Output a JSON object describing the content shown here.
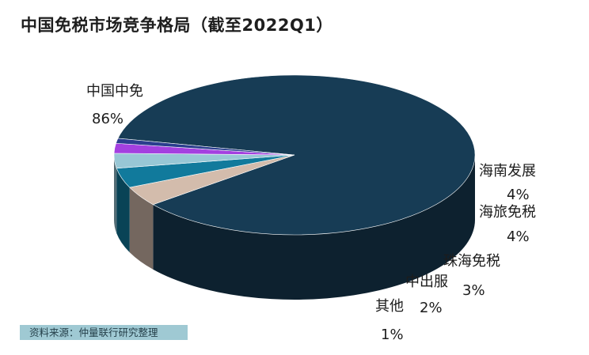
{
  "title": "中国免税市场竞争格局（截至2022Q1）",
  "source": "资料来源：仲量联行研究整理",
  "chart_data": {
    "type": "pie",
    "title": "中国免税市场竞争格局（截至2022Q1）",
    "style": "3d",
    "categories": [
      "中国中免",
      "海南发展",
      "海旅免税",
      "珠海免税",
      "中出服",
      "其他"
    ],
    "values": [
      86,
      4,
      4,
      3,
      2,
      1
    ],
    "labels": [
      "86%",
      "4%",
      "4%",
      "3%",
      "2%",
      "1%"
    ],
    "colors": [
      "#173c55",
      "#d3bcac",
      "#117a9c",
      "#98c7d5",
      "#a440e0",
      "#2b3e8e"
    ],
    "legend": "none"
  }
}
